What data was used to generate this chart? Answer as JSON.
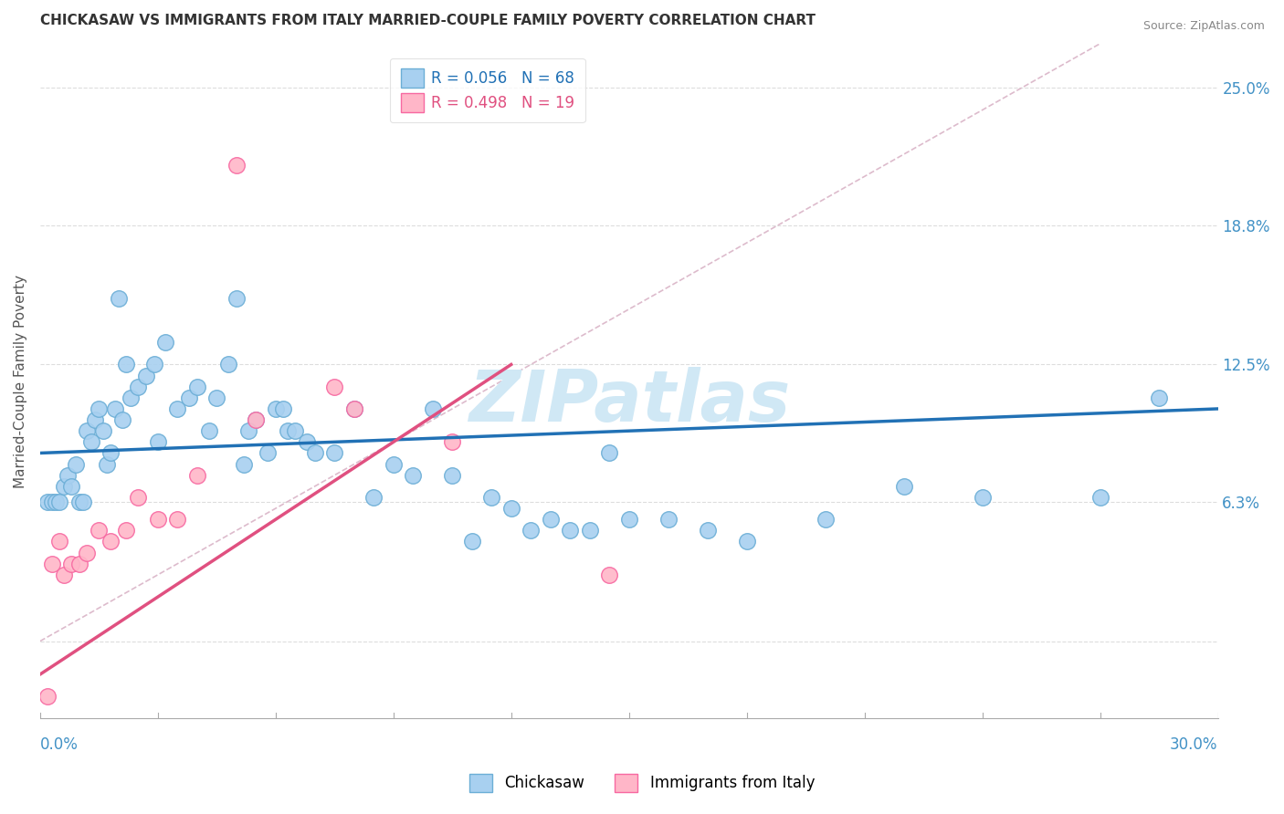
{
  "title": "CHICKASAW VS IMMIGRANTS FROM ITALY MARRIED-COUPLE FAMILY POVERTY CORRELATION CHART",
  "source": "Source: ZipAtlas.com",
  "ylabel": "Married-Couple Family Poverty",
  "xmin": 0.0,
  "xmax": 30.0,
  "ymin": -3.5,
  "ymax": 27.0,
  "ytick_vals": [
    0.0,
    6.3,
    12.5,
    18.8,
    25.0
  ],
  "ytick_labels": [
    "",
    "6.3%",
    "12.5%",
    "18.8%",
    "25.0%"
  ],
  "chickasaw_color": "#a8d0f0",
  "chickasaw_edge": "#6baed6",
  "italy_color": "#ffb6c8",
  "italy_edge": "#f768a1",
  "regression_chickasaw_color": "#2171b5",
  "regression_italy_color": "#e05080",
  "diagonal_color": "#ddbbcc",
  "watermark": "ZIPatlas",
  "watermark_color": "#d0e8f5",
  "background_color": "#ffffff",
  "title_fontsize": 11,
  "ytick_color": "#4292c6",
  "chickasaw_x": [
    0.2,
    0.3,
    0.4,
    0.5,
    0.6,
    0.7,
    0.8,
    0.9,
    1.0,
    1.1,
    1.2,
    1.3,
    1.4,
    1.5,
    1.6,
    1.7,
    1.8,
    1.9,
    2.0,
    2.1,
    2.2,
    2.3,
    2.5,
    2.7,
    2.9,
    3.0,
    3.2,
    3.5,
    3.8,
    4.0,
    4.3,
    4.5,
    4.8,
    5.0,
    5.2,
    5.5,
    5.8,
    6.0,
    6.3,
    6.5,
    6.8,
    7.0,
    7.5,
    8.0,
    8.5,
    9.0,
    9.5,
    10.0,
    10.5,
    11.0,
    11.5,
    12.0,
    12.5,
    13.0,
    13.5,
    14.0,
    15.0,
    16.0,
    17.0,
    18.0,
    20.0,
    22.0,
    24.0,
    27.0,
    28.5,
    14.5,
    6.2,
    5.3
  ],
  "chickasaw_y": [
    6.3,
    6.3,
    6.3,
    6.3,
    7.0,
    7.5,
    7.0,
    8.0,
    6.3,
    6.3,
    9.5,
    9.0,
    10.0,
    10.5,
    9.5,
    8.0,
    8.5,
    10.5,
    15.5,
    10.0,
    12.5,
    11.0,
    11.5,
    12.0,
    12.5,
    9.0,
    13.5,
    10.5,
    11.0,
    11.5,
    9.5,
    11.0,
    12.5,
    15.5,
    8.0,
    10.0,
    8.5,
    10.5,
    9.5,
    9.5,
    9.0,
    8.5,
    8.5,
    10.5,
    6.5,
    8.0,
    7.5,
    10.5,
    7.5,
    4.5,
    6.5,
    6.0,
    5.0,
    5.5,
    5.0,
    5.0,
    5.5,
    5.5,
    5.0,
    4.5,
    5.5,
    7.0,
    6.5,
    6.5,
    11.0,
    8.5,
    10.5,
    9.5
  ],
  "italy_x": [
    0.2,
    0.3,
    0.5,
    0.6,
    0.8,
    1.0,
    1.2,
    1.5,
    1.8,
    2.2,
    2.5,
    3.0,
    3.5,
    4.0,
    5.5,
    7.5,
    8.0,
    14.5,
    10.5
  ],
  "italy_y": [
    -2.5,
    3.5,
    4.5,
    3.0,
    3.5,
    3.5,
    4.0,
    5.0,
    4.5,
    5.0,
    6.5,
    5.5,
    5.5,
    7.5,
    10.0,
    11.5,
    10.5,
    3.0,
    9.0
  ],
  "italy_outlier_x": 5.0,
  "italy_outlier_y": 21.5,
  "regression_chickasaw_x0": 0.0,
  "regression_chickasaw_y0": 8.5,
  "regression_chickasaw_x1": 30.0,
  "regression_chickasaw_y1": 10.5,
  "regression_italy_x0": 0.0,
  "regression_italy_y0": -1.5,
  "regression_italy_x1": 12.0,
  "regression_italy_y1": 12.5
}
